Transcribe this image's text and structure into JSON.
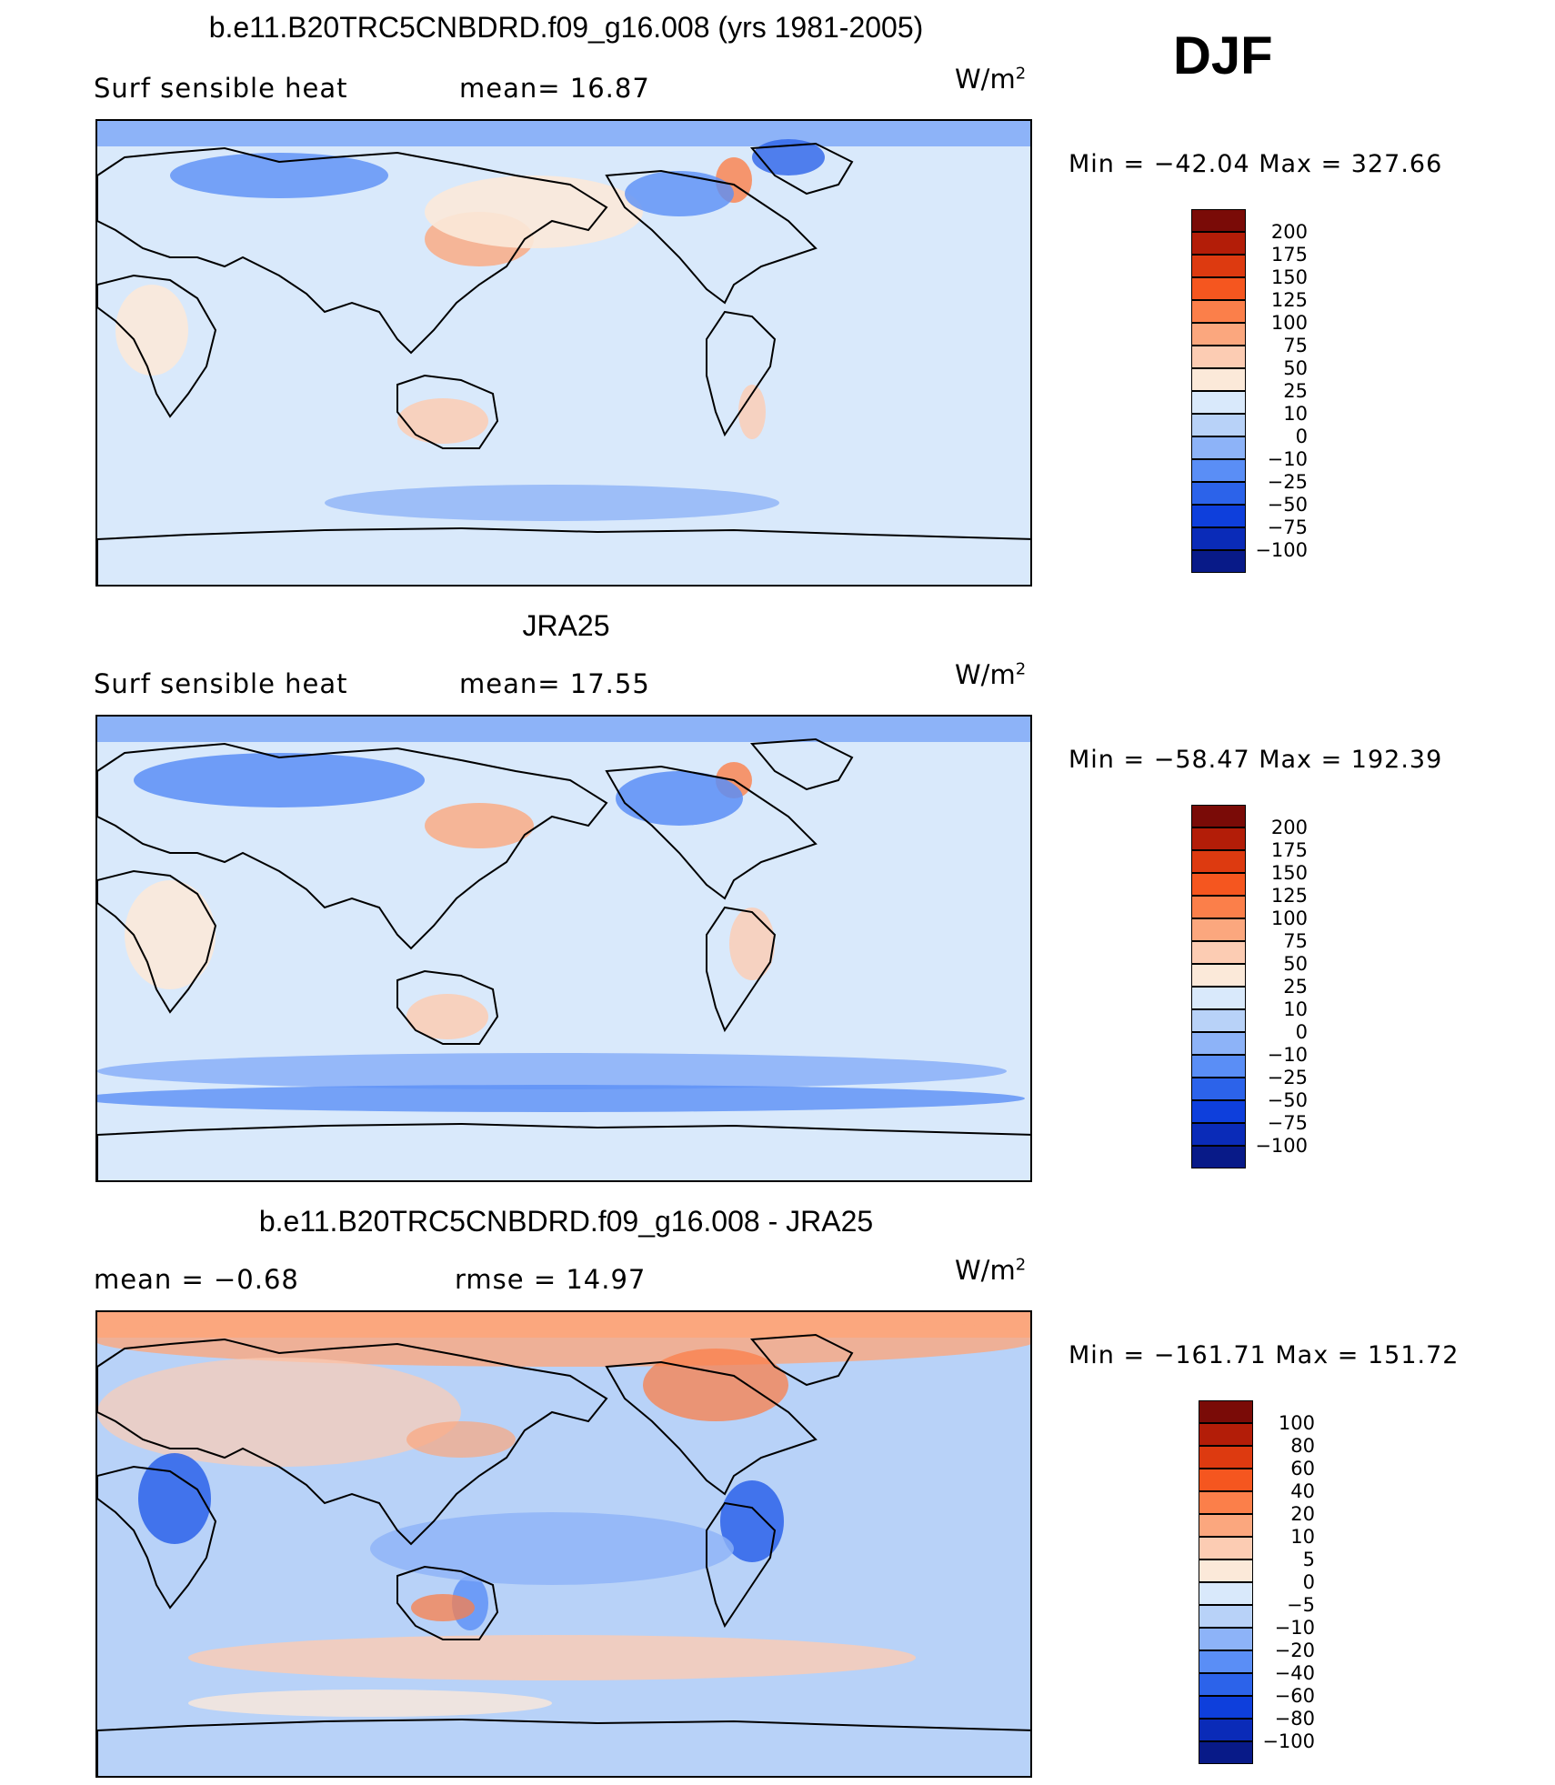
{
  "season": "DJF",
  "units_text": "W/m",
  "units_sup": "2",
  "panels": [
    {
      "title": "b.e11.B20TRC5CNBDRD.f09_g16.008 (yrs 1981-2005)",
      "left_label": "Surf sensible heat",
      "right_label": "mean=  16.87",
      "minmax": "Min = −42.04 Max = 327.66",
      "levels": [
        "200",
        "175",
        "150",
        "125",
        "100",
        "75",
        "50",
        "25",
        "10",
        "0",
        "−10",
        "−25",
        "−50",
        "−75",
        "−100"
      ],
      "colors": [
        "#7a0b07",
        "#b31d08",
        "#dd3a10",
        "#f5561f",
        "#fb7f4a",
        "#fba77e",
        "#fcccb3",
        "#fbe9d9",
        "#d9e9fb",
        "#b8d2f8",
        "#8db3f8",
        "#5a8ef6",
        "#2c63ea",
        "#0e3fdc",
        "#0a2bb8",
        "#081a88"
      ]
    },
    {
      "title": "JRA25",
      "left_label": "Surf sensible heat",
      "right_label": "mean=  17.55",
      "minmax": "Min = −58.47 Max = 192.39",
      "levels": [
        "200",
        "175",
        "150",
        "125",
        "100",
        "75",
        "50",
        "25",
        "10",
        "0",
        "−10",
        "−25",
        "−50",
        "−75",
        "−100"
      ],
      "colors": [
        "#7a0b07",
        "#b31d08",
        "#dd3a10",
        "#f5561f",
        "#fb7f4a",
        "#fba77e",
        "#fcccb3",
        "#fbe9d9",
        "#d9e9fb",
        "#b8d2f8",
        "#8db3f8",
        "#5a8ef6",
        "#2c63ea",
        "#0e3fdc",
        "#0a2bb8",
        "#081a88"
      ]
    },
    {
      "title": "b.e11.B20TRC5CNBDRD.f09_g16.008 - JRA25",
      "left_label": "mean =   −0.68",
      "right_label": "rmse =   14.97",
      "minmax": "Min = −161.71 Max = 151.72",
      "levels": [
        "100",
        "80",
        "60",
        "40",
        "20",
        "10",
        "5",
        "0",
        "−5",
        "−10",
        "−20",
        "−40",
        "−60",
        "−80",
        "−100"
      ],
      "colors": [
        "#7a0b07",
        "#b31d08",
        "#dd3a10",
        "#f5561f",
        "#fb7f4a",
        "#fba77e",
        "#fcccb3",
        "#fbe9d9",
        "#d9e9fb",
        "#b8d2f8",
        "#8db3f8",
        "#5a8ef6",
        "#2c63ea",
        "#0e3fdc",
        "#0a2bb8",
        "#081a88"
      ]
    }
  ]
}
